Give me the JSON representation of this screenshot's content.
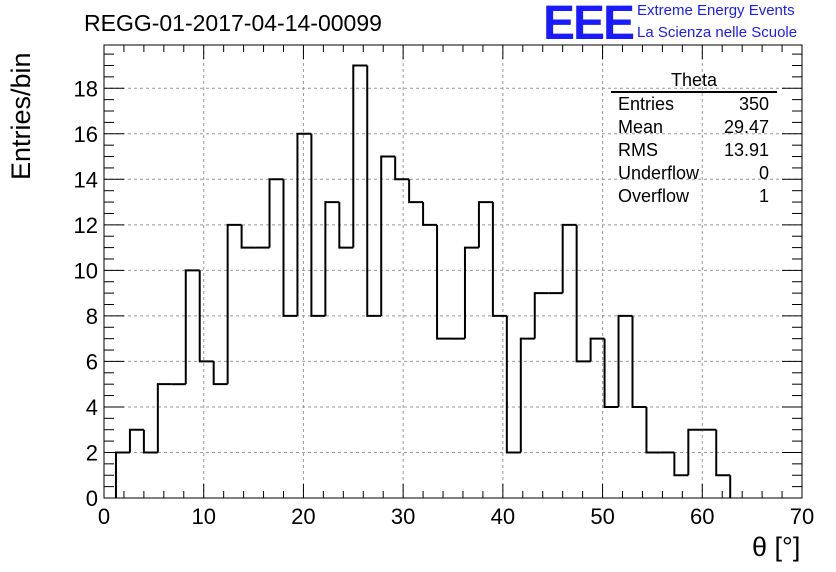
{
  "title": "REGG-01-2017-04-14-00099",
  "logo": {
    "mark": "EEE",
    "line1": "Extreme Energy Events",
    "line2": "La Scienza nelle Scuole",
    "color": "#1a1aff"
  },
  "stats_box": {
    "title": "Theta",
    "rows": [
      {
        "label": "Entries",
        "value": "350"
      },
      {
        "label": "Mean",
        "value": "29.47"
      },
      {
        "label": "RMS",
        "value": "13.91"
      },
      {
        "label": "Underflow",
        "value": "0"
      },
      {
        "label": "Overflow",
        "value": "1"
      }
    ]
  },
  "chart_data": {
    "type": "bar",
    "subtype": "histogram-step",
    "xlabel": "θ [°]",
    "ylabel": "Entries/bin",
    "xlim": [
      0,
      70
    ],
    "ylim": [
      0,
      19.9
    ],
    "bin_width": 1.4,
    "bin_edges_start": 1.2,
    "values": [
      2,
      3,
      2,
      5,
      5,
      10,
      6,
      5,
      12,
      11,
      11,
      14,
      8,
      16,
      8,
      13,
      11,
      19,
      8,
      15,
      14,
      13,
      12,
      7,
      7,
      11,
      13,
      8,
      2,
      7,
      9,
      9,
      12,
      6,
      7,
      4,
      8,
      4,
      2,
      2,
      1,
      3,
      3,
      1
    ],
    "x_ticks": [
      0,
      10,
      20,
      30,
      40,
      50,
      60,
      70
    ],
    "y_ticks": [
      0,
      2,
      4,
      6,
      8,
      10,
      12,
      14,
      16,
      18
    ],
    "grid": true,
    "line_color": "#000000",
    "grid_color": "#999999"
  }
}
